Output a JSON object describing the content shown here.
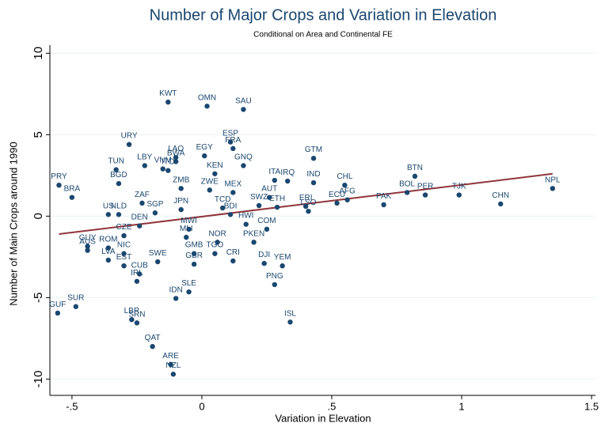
{
  "chart_data": {
    "type": "scatter",
    "title": "Number of Major Crops and Variation in Elevation",
    "subtitle": "Conditional on Area and Continental FE",
    "x_label": "Variation in Elevation",
    "y_label": "Number of Main Crops around 1990",
    "xlim": [
      -0.585,
      1.515
    ],
    "ylim": [
      -11,
      10.5
    ],
    "xticks": [
      {
        "value": -0.5,
        "label": "-.5"
      },
      0,
      {
        "value": 0.5,
        "label": ".5"
      },
      1,
      1.5
    ],
    "yticks": [
      -10,
      -5,
      0,
      5,
      10
    ],
    "grid": true,
    "series": [
      {
        "color": "#1a476f",
        "labels": [
          "PRY",
          "BRA",
          "KWT",
          "OMN",
          "SAU",
          "URY",
          "ESP",
          "FRA",
          "LAO",
          "EGY",
          "BWA",
          "GTM",
          "GNQ",
          "LBY",
          "TUN",
          "ITO",
          "ITA",
          "IRQ",
          "IND",
          "BTN",
          "CHL",
          "AFG",
          "TJK",
          "CHN",
          "NPL",
          "BOL",
          "PER",
          "PAK",
          "ECU",
          "ERI",
          "LSO",
          "ZMB",
          "MEX",
          "AUT",
          "ETH",
          "COM",
          "DJI",
          "YEM",
          "PNG",
          "ISL",
          "CRI",
          "SLE",
          "IDN",
          "CUB",
          "IRL",
          "GUF",
          "SUR",
          "LBR",
          "SRN",
          "QAT",
          "ARE",
          "NZL",
          "GUY",
          "AUS",
          "ROM",
          "LVA",
          "NIC",
          "EST",
          "CZE",
          "NLD",
          "BGD",
          "SWE",
          "GMB",
          "GBR",
          "TGO",
          "NOR",
          "HWI",
          "PKEN",
          "ZAF",
          "US",
          "BDI",
          "SWZ",
          "DEN",
          "VNM",
          "ZWE",
          "KEN",
          "MWI",
          "SGP",
          "MLI",
          "JPN",
          "TCD"
        ],
        "x": [
          -0.55,
          -0.5,
          -0.13,
          0.02,
          0.16,
          -0.28,
          0.11,
          0.12,
          -0.1,
          0.01,
          -0.1,
          0.43,
          0.16,
          -0.22,
          -0.33,
          -0.13,
          0.28,
          0.33,
          0.43,
          0.82,
          0.55,
          0.56,
          0.99,
          1.15,
          1.35,
          0.79,
          0.86,
          0.7,
          0.52,
          0.4,
          0.41,
          -0.08,
          0.12,
          0.26,
          0.29,
          0.25,
          0.24,
          0.31,
          0.28,
          0.34,
          0.12,
          -0.05,
          -0.1,
          -0.24,
          -0.25,
          -0.555,
          -0.485,
          -0.27,
          -0.25,
          -0.19,
          -0.12,
          -0.11,
          -0.44,
          -0.44,
          -0.36,
          -0.36,
          -0.3,
          -0.3,
          -0.3,
          -0.32,
          -0.32,
          -0.17,
          -0.03,
          -0.03,
          0.05,
          0.06,
          0.17,
          0.2,
          -0.23,
          -0.36,
          0.11,
          0.22,
          -0.24,
          -0.15,
          0.03,
          0.05,
          -0.05,
          -0.18,
          -0.06,
          -0.08,
          0.08
        ],
        "y": [
          1.9,
          1.15,
          7.0,
          6.75,
          6.55,
          4.4,
          4.55,
          4.15,
          3.6,
          3.7,
          3.35,
          3.55,
          3.1,
          3.1,
          2.85,
          2.8,
          2.2,
          2.15,
          2.05,
          2.45,
          1.9,
          1.0,
          1.3,
          0.75,
          1.7,
          1.45,
          1.3,
          0.7,
          0.8,
          0.6,
          0.3,
          1.7,
          1.45,
          1.15,
          0.55,
          -0.8,
          -2.9,
          -3.05,
          -4.2,
          -6.5,
          -2.75,
          -4.65,
          -5.05,
          -3.55,
          -4.0,
          -5.95,
          -5.55,
          -6.35,
          -6.55,
          -8.0,
          -9.1,
          -9.7,
          -1.85,
          -2.1,
          -1.95,
          -2.7,
          -2.3,
          -3.05,
          -1.2,
          0.1,
          2.0,
          -2.8,
          -2.3,
          -2.95,
          -2.3,
          -1.6,
          -0.5,
          -1.6,
          0.8,
          0.1,
          0.1,
          0.65,
          -0.6,
          2.9,
          1.6,
          2.6,
          -0.8,
          0.2,
          -1.3,
          0.4,
          0.5
        ]
      }
    ],
    "fit_line": {
      "color": "#90353b",
      "x": [
        -0.55,
        1.35
      ],
      "y": [
        -1.1,
        2.6
      ]
    }
  }
}
